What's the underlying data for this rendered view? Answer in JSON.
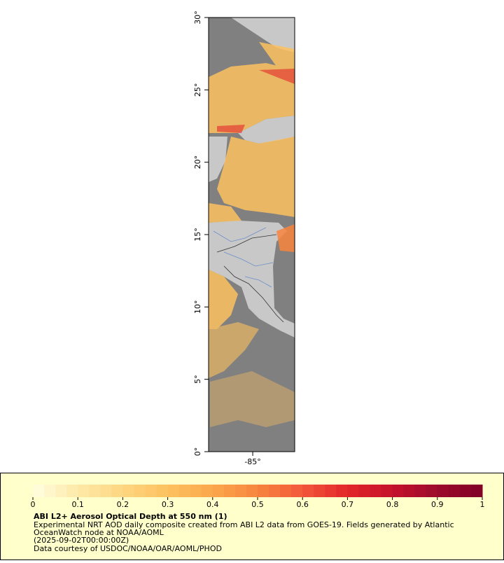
{
  "chart_data": {
    "type": "map",
    "xlim": [
      -88.05,
      -82.1
    ],
    "ylim": [
      0,
      30
    ],
    "xticks": [
      {
        "value": -85,
        "label": "-85°"
      }
    ],
    "yticks": [
      {
        "value": 0,
        "label": "0°"
      },
      {
        "value": 5,
        "label": "5°"
      },
      {
        "value": 10,
        "label": "10°"
      },
      {
        "value": 15,
        "label": "15°"
      },
      {
        "value": 20,
        "label": "20°"
      },
      {
        "value": 25,
        "label": "25°"
      },
      {
        "value": 30,
        "label": "30°"
      }
    ],
    "colorbar": {
      "title": "ABI L2+ Aerosol Optical Depth at 550 nm (1)",
      "lim": [
        0,
        1
      ],
      "ticks": [
        0,
        0.1,
        0.2,
        0.3,
        0.4,
        0.5,
        0.6,
        0.7,
        0.8,
        0.9,
        1
      ],
      "colors": [
        "#ffffe0",
        "#fee9a8",
        "#fdd580",
        "#fdc260",
        "#fba74b",
        "#f8853f",
        "#f2573a",
        "#e3262a",
        "#c4122b",
        "#9c0a2c",
        "#800026"
      ]
    },
    "description": [
      "Experimental NRT AOD daily composite created from ABI L2 data from GOES-19. Fields generated by Atlantic",
      "OceanWatch node at NOAA/AOML",
      "(2025-09-02T00:00:00Z)",
      "Data courtesy of USDOC/NOAA/OAR/AOML/PHOD"
    ]
  }
}
